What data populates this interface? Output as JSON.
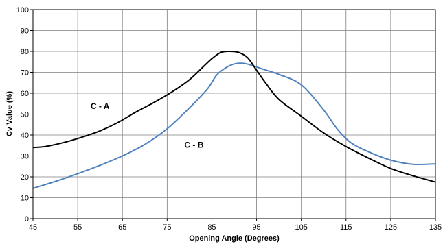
{
  "chart_data": {
    "type": "line",
    "title": "",
    "xlabel": "Opening Angle (Degrees)",
    "ylabel": "Cv Value (%)",
    "xlim": [
      45,
      135
    ],
    "ylim": [
      0,
      100
    ],
    "x_ticks": [
      45,
      55,
      65,
      75,
      85,
      95,
      105,
      115,
      125,
      135
    ],
    "y_ticks": [
      0,
      10,
      20,
      30,
      40,
      50,
      60,
      70,
      80,
      90,
      100
    ],
    "grid": true,
    "legend": "none",
    "series": [
      {
        "name": "C - A",
        "color": "#000000",
        "x": [
          45,
          48,
          52,
          56,
          60,
          64,
          68,
          72,
          76,
          80,
          83,
          85,
          87,
          89,
          91,
          93,
          95,
          97,
          100,
          105,
          110,
          115,
          120,
          125,
          130,
          135
        ],
        "y": [
          34,
          34.6,
          36.5,
          39,
          42,
          46,
          51,
          55.5,
          60.5,
          66.5,
          72.5,
          76.5,
          79.5,
          80,
          79.5,
          77,
          71,
          65,
          57,
          49,
          41,
          34.5,
          29,
          24,
          20.5,
          17.5
        ]
      },
      {
        "name": "C - B",
        "color": "#4f81bd",
        "x": [
          45,
          50,
          55,
          60,
          65,
          70,
          75,
          80,
          84,
          86,
          88,
          90,
          92,
          94,
          96,
          100,
          105,
          110,
          113,
          116,
          120,
          125,
          130,
          135
        ],
        "y": [
          14.5,
          17.8,
          21.5,
          25.5,
          30,
          35.5,
          43,
          53,
          62,
          68.5,
          72,
          74,
          74.3,
          73.3,
          71.8,
          69,
          64,
          52,
          43,
          36.5,
          32,
          28,
          26,
          26.2
        ]
      }
    ],
    "annotations": [
      {
        "text": "C - A",
        "x": 60,
        "y": 52.5
      },
      {
        "text": "C - B",
        "x": 81,
        "y": 34
      }
    ]
  }
}
